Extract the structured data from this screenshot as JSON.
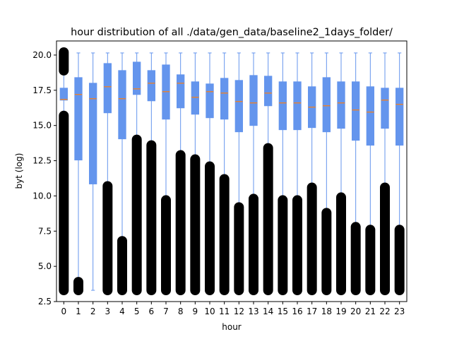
{
  "chart_data": {
    "type": "box",
    "title": "hour distribution of all ./data/gen_data/baseline2_1days_folder/",
    "xlabel": "hour",
    "ylabel": "byt (log)",
    "ylim": [
      2.5,
      21
    ],
    "yticks": [
      "2.5",
      "5.0",
      "7.5",
      "10.0",
      "12.5",
      "15.0",
      "17.5",
      "20.0"
    ],
    "ytick_values": [
      2.5,
      5.0,
      7.5,
      10.0,
      12.5,
      15.0,
      17.5,
      20.0
    ],
    "categories": [
      "0",
      "1",
      "2",
      "3",
      "4",
      "5",
      "6",
      "7",
      "8",
      "9",
      "10",
      "11",
      "12",
      "13",
      "14",
      "15",
      "16",
      "17",
      "18",
      "19",
      "20",
      "21",
      "22",
      "23"
    ],
    "box_color": "#6495ed",
    "median_color": "#ff7f0e",
    "flier_color": "#000000",
    "grid": false,
    "boxes": [
      {
        "hour": "0",
        "whislo": 15.7,
        "q1": 16.8,
        "median": 16.85,
        "q3": 17.65,
        "whishi": 18.9,
        "fliers_low": [
          3.3,
          15.7
        ],
        "fliers_high": [
          18.9,
          20.2
        ]
      },
      {
        "hour": "1",
        "whislo": 3.9,
        "q1": 12.55,
        "median": 17.2,
        "q3": 18.4,
        "whishi": 20.15,
        "fliers_low": [
          3.3,
          3.9
        ],
        "fliers_high": []
      },
      {
        "hour": "2",
        "whislo": 3.3,
        "q1": 10.85,
        "median": 16.9,
        "q3": 18.0,
        "whishi": 20.15,
        "fliers_low": [],
        "fliers_high": []
      },
      {
        "hour": "3",
        "whislo": 10.7,
        "q1": 15.9,
        "median": 17.75,
        "q3": 19.4,
        "whishi": 20.15,
        "fliers_low": [
          3.3,
          10.7
        ],
        "fliers_high": []
      },
      {
        "hour": "4",
        "whislo": 6.8,
        "q1": 14.05,
        "median": 16.9,
        "q3": 18.9,
        "whishi": 20.15,
        "fliers_low": [
          3.3,
          6.8
        ],
        "fliers_high": []
      },
      {
        "hour": "5",
        "whislo": 14.0,
        "q1": 17.2,
        "median": 17.6,
        "q3": 19.5,
        "whishi": 20.15,
        "fliers_low": [
          3.3,
          14.0
        ],
        "fliers_high": []
      },
      {
        "hour": "6",
        "whislo": 13.6,
        "q1": 16.75,
        "median": 18.0,
        "q3": 18.9,
        "whishi": 20.15,
        "fliers_low": [
          3.3,
          13.6
        ],
        "fliers_high": []
      },
      {
        "hour": "7",
        "whislo": 9.7,
        "q1": 15.45,
        "median": 17.4,
        "q3": 19.3,
        "whishi": 20.15,
        "fliers_low": [
          3.3,
          9.7
        ],
        "fliers_high": []
      },
      {
        "hour": "8",
        "whislo": 12.9,
        "q1": 16.25,
        "median": 18.0,
        "q3": 18.6,
        "whishi": 20.15,
        "fliers_low": [
          3.3,
          12.9
        ],
        "fliers_high": []
      },
      {
        "hour": "9",
        "whislo": 12.6,
        "q1": 15.8,
        "median": 17.0,
        "q3": 18.1,
        "whishi": 20.15,
        "fliers_low": [
          3.3,
          12.6
        ],
        "fliers_high": []
      },
      {
        "hour": "10",
        "whislo": 12.1,
        "q1": 15.55,
        "median": 17.4,
        "q3": 17.95,
        "whishi": 20.15,
        "fliers_low": [
          3.3,
          12.1
        ],
        "fliers_high": []
      },
      {
        "hour": "11",
        "whislo": 11.2,
        "q1": 15.45,
        "median": 17.3,
        "q3": 18.35,
        "whishi": 20.15,
        "fliers_low": [
          3.3,
          11.2
        ],
        "fliers_high": []
      },
      {
        "hour": "12",
        "whislo": 9.2,
        "q1": 14.55,
        "median": 16.7,
        "q3": 18.2,
        "whishi": 20.15,
        "fliers_low": [
          3.3,
          9.2
        ],
        "fliers_high": []
      },
      {
        "hour": "13",
        "whislo": 9.8,
        "q1": 15.0,
        "median": 16.6,
        "q3": 18.55,
        "whishi": 20.15,
        "fliers_low": [
          3.3,
          9.8
        ],
        "fliers_high": []
      },
      {
        "hour": "14",
        "whislo": 13.4,
        "q1": 16.4,
        "median": 17.3,
        "q3": 18.5,
        "whishi": 20.15,
        "fliers_low": [
          3.3,
          13.4
        ],
        "fliers_high": []
      },
      {
        "hour": "15",
        "whislo": 9.7,
        "q1": 14.7,
        "median": 16.6,
        "q3": 18.1,
        "whishi": 20.15,
        "fliers_low": [
          3.3,
          9.7
        ],
        "fliers_high": []
      },
      {
        "hour": "16",
        "whislo": 9.7,
        "q1": 14.7,
        "median": 16.6,
        "q3": 18.1,
        "whishi": 20.15,
        "fliers_low": [
          3.3,
          9.7
        ],
        "fliers_high": []
      },
      {
        "hour": "17",
        "whislo": 10.6,
        "q1": 14.85,
        "median": 16.3,
        "q3": 17.75,
        "whishi": 20.15,
        "fliers_low": [
          3.3,
          10.6
        ],
        "fliers_high": []
      },
      {
        "hour": "18",
        "whislo": 8.8,
        "q1": 14.55,
        "median": 16.4,
        "q3": 18.4,
        "whishi": 20.15,
        "fliers_low": [
          3.3,
          8.8
        ],
        "fliers_high": []
      },
      {
        "hour": "19",
        "whislo": 9.9,
        "q1": 14.8,
        "median": 16.6,
        "q3": 18.1,
        "whishi": 20.15,
        "fliers_low": [
          3.3,
          9.9
        ],
        "fliers_high": []
      },
      {
        "hour": "20",
        "whislo": 7.8,
        "q1": 13.95,
        "median": 16.1,
        "q3": 18.1,
        "whishi": 20.15,
        "fliers_low": [
          3.3,
          7.8
        ],
        "fliers_high": []
      },
      {
        "hour": "21",
        "whislo": 7.6,
        "q1": 13.6,
        "median": 15.95,
        "q3": 17.75,
        "whishi": 20.15,
        "fliers_low": [
          3.3,
          7.6
        ],
        "fliers_high": []
      },
      {
        "hour": "22",
        "whislo": 10.6,
        "q1": 14.8,
        "median": 16.8,
        "q3": 17.65,
        "whishi": 20.15,
        "fliers_low": [
          3.3,
          10.6
        ],
        "fliers_high": []
      },
      {
        "hour": "23",
        "whislo": 7.6,
        "q1": 13.6,
        "median": 16.5,
        "q3": 17.65,
        "whishi": 20.15,
        "fliers_low": [
          3.3,
          7.6
        ],
        "fliers_high": []
      }
    ]
  }
}
